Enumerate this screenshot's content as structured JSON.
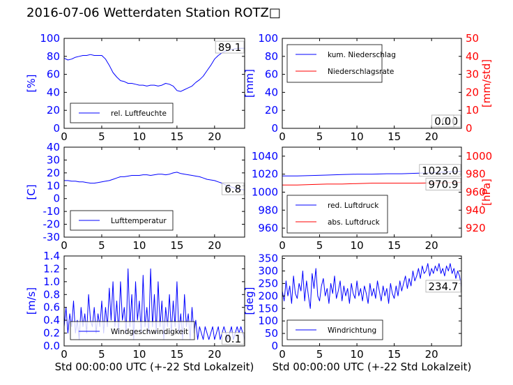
{
  "figure_title": "2016-07-06 Wetterdaten Station ROTZ□",
  "colors": {
    "primary": "#0000ff",
    "secondary": "#ff0000",
    "axis": "#000000"
  },
  "chart_data": [
    {
      "type": "line",
      "ylabel": "[%]",
      "xlim": [
        0,
        24
      ],
      "ylim": [
        0,
        100
      ],
      "xticks": [
        0,
        5,
        10,
        15,
        20
      ],
      "yticks": [
        0,
        20,
        40,
        60,
        80,
        100
      ],
      "xlabel": "",
      "grid": false,
      "legend_placement": "lower-center",
      "last_value_label": "89.1",
      "series": [
        {
          "name": "rel. Luftfeuchte",
          "color": "#0000ff",
          "x": [
            0,
            0.5,
            1,
            1.5,
            2,
            2.5,
            3,
            3.5,
            4,
            4.5,
            5,
            5.5,
            6,
            6.5,
            7,
            7.5,
            8,
            8.5,
            9,
            9.5,
            10,
            10.5,
            11,
            11.5,
            12,
            12.5,
            13,
            13.5,
            14,
            14.5,
            15,
            15.5,
            16,
            16.5,
            17,
            17.5,
            18,
            18.5,
            19,
            19.5,
            20,
            20.5,
            21,
            21.5,
            22,
            22.5,
            23,
            23.5,
            24
          ],
          "y": [
            78,
            76,
            77,
            79,
            80,
            81,
            81,
            82,
            81,
            81,
            81,
            77,
            70,
            62,
            57,
            53,
            52,
            50,
            50,
            49,
            48,
            48,
            47,
            48,
            48,
            47,
            48,
            50,
            49,
            47,
            42,
            41,
            43,
            45,
            47,
            51,
            54,
            58,
            64,
            70,
            77,
            81,
            84,
            86,
            87,
            88,
            89,
            89,
            89.1
          ]
        }
      ]
    },
    {
      "type": "line",
      "ylabel": "[mm]",
      "ylabel_right": "[mm/std]",
      "xlim": [
        0,
        24
      ],
      "ylim": [
        0,
        100
      ],
      "ylim_right": [
        0,
        50
      ],
      "xticks": [
        0,
        5,
        10,
        15,
        20
      ],
      "yticks": [
        0,
        20,
        40,
        60,
        80,
        100
      ],
      "yticks_right": [
        0,
        10,
        20,
        30,
        40,
        50
      ],
      "grid": false,
      "legend_placement": "upper-left",
      "last_value_labels": [
        "0.0",
        "0.0"
      ],
      "series": [
        {
          "name": "kum. Niederschlag",
          "color": "#0000ff",
          "x": [
            0,
            24
          ],
          "y": [
            0,
            0
          ]
        },
        {
          "name": "Niederschlagsrate",
          "color": "#ff0000",
          "axis": "right",
          "x": [
            0,
            24
          ],
          "y": [
            0,
            0
          ]
        }
      ]
    },
    {
      "type": "line",
      "ylabel": "[C]",
      "xlim": [
        0,
        24
      ],
      "ylim": [
        -30,
        40
      ],
      "xticks": [
        0,
        5,
        10,
        15,
        20
      ],
      "yticks": [
        -30,
        -20,
        -10,
        0,
        10,
        20,
        30,
        40
      ],
      "grid": false,
      "legend_placement": "lower-center",
      "last_value_label": "6.8",
      "series": [
        {
          "name": "Lufttemperatur",
          "color": "#0000ff",
          "x": [
            0,
            0.5,
            1,
            1.5,
            2,
            2.5,
            3,
            3.5,
            4,
            4.5,
            5,
            5.5,
            6,
            6.5,
            7,
            7.5,
            8,
            8.5,
            9,
            9.5,
            10,
            10.5,
            11,
            11.5,
            12,
            12.5,
            13,
            13.5,
            14,
            14.5,
            15,
            15.5,
            16,
            16.5,
            17,
            17.5,
            18,
            18.5,
            19,
            19.5,
            20,
            20.5,
            21,
            21.5,
            22,
            22.5,
            23,
            23.5,
            24
          ],
          "y": [
            14,
            14,
            13.5,
            13.5,
            13,
            13,
            12.5,
            12,
            12,
            12.5,
            13,
            13.5,
            14,
            15,
            16,
            17,
            17,
            17.5,
            18,
            18,
            18,
            18.5,
            18.5,
            18,
            18.5,
            19,
            19,
            18.5,
            19,
            20,
            20.5,
            19.5,
            19,
            18.5,
            18,
            17.5,
            17,
            16,
            15,
            14.5,
            14,
            13,
            12,
            10.5,
            9.5,
            8.5,
            7.5,
            7,
            6.8
          ]
        }
      ]
    },
    {
      "type": "line",
      "ylabel": "",
      "ylabel_right": "[hPa]",
      "xlim": [
        0,
        24
      ],
      "ylim": [
        950,
        1050
      ],
      "ylim_right": [
        910,
        1010
      ],
      "xticks": [
        0,
        5,
        10,
        15,
        20
      ],
      "yticks": [
        960,
        980,
        1000,
        1020,
        1040
      ],
      "yticks_right": [
        920,
        940,
        960,
        980,
        1000
      ],
      "grid": false,
      "legend_placement": "lower-center",
      "last_value_labels": [
        "1023.0",
        "970.9"
      ],
      "series": [
        {
          "name": "red. Luftdruck",
          "color": "#0000ff",
          "x": [
            0,
            2,
            4,
            6,
            8,
            10,
            12,
            14,
            16,
            18,
            20,
            22,
            24
          ],
          "y": [
            1018,
            1018,
            1018.5,
            1019,
            1019.5,
            1020,
            1020,
            1020.5,
            1020.5,
            1021,
            1021.5,
            1022.5,
            1023
          ]
        },
        {
          "name": "abs. Luftdruck",
          "color": "#ff0000",
          "axis": "right",
          "x": [
            0,
            2,
            4,
            6,
            8,
            10,
            12,
            14,
            16,
            18,
            20,
            22,
            24
          ],
          "y": [
            968,
            968,
            968.5,
            969,
            969,
            969.5,
            970,
            970,
            970,
            970,
            970.2,
            970.5,
            970.9
          ]
        }
      ]
    },
    {
      "type": "line",
      "ylabel": "[m/s]",
      "xlabel": "Std 00:00:00 UTC (+-22 Std Lokalzeit)",
      "xlim": [
        0,
        24
      ],
      "ylim": [
        0,
        1.4
      ],
      "xticks": [
        0,
        5,
        10,
        15,
        20
      ],
      "yticks": [
        0.0,
        0.2,
        0.4,
        0.6,
        0.8,
        1.0,
        1.2,
        1.4
      ],
      "grid": false,
      "legend_placement": "lower-center",
      "last_value_label": "0.1",
      "series": [
        {
          "name": "Windgeschwindigkeit",
          "color": "#0000ff",
          "x": [
            0,
            0.25,
            0.5,
            0.75,
            1,
            1.25,
            1.5,
            1.75,
            2,
            2.25,
            2.5,
            2.75,
            3,
            3.25,
            3.5,
            3.75,
            4,
            4.25,
            4.5,
            4.75,
            5,
            5.25,
            5.5,
            5.75,
            6,
            6.25,
            6.5,
            6.75,
            7,
            7.25,
            7.5,
            7.75,
            8,
            8.25,
            8.5,
            8.75,
            9,
            9.25,
            9.5,
            9.75,
            10,
            10.25,
            10.5,
            10.75,
            11,
            11.25,
            11.5,
            11.75,
            12,
            12.25,
            12.5,
            12.75,
            13,
            13.25,
            13.5,
            13.75,
            14,
            14.25,
            14.5,
            14.75,
            15,
            15.25,
            15.5,
            15.75,
            16,
            16.25,
            16.5,
            16.75,
            17,
            17.25,
            17.5,
            17.75,
            18,
            18.25,
            18.5,
            18.75,
            19,
            19.25,
            19.5,
            19.75,
            20,
            20.25,
            20.5,
            20.75,
            21,
            21.25,
            21.5,
            21.75,
            22,
            22.25,
            22.5,
            22.75,
            23,
            23.25,
            23.5,
            23.75,
            24
          ],
          "y": [
            0.3,
            0.6,
            0.2,
            0.5,
            0.3,
            0.7,
            0.2,
            0.4,
            0.1,
            0.6,
            0.3,
            0.5,
            0.2,
            0.8,
            0.4,
            0.3,
            0.6,
            0.2,
            0.5,
            0.3,
            0.7,
            0.2,
            0.6,
            0.3,
            0.9,
            0.4,
            1.0,
            0.3,
            0.7,
            0.2,
            1.0,
            0.4,
            0.6,
            0.2,
            1.2,
            0.3,
            0.8,
            0.1,
            1.0,
            0.4,
            0.7,
            0.2,
            1.1,
            0.3,
            0.6,
            0.2,
            1.2,
            0.3,
            0.8,
            0.2,
            1.0,
            0.3,
            0.7,
            0.1,
            0.6,
            0.3,
            0.8,
            0.2,
            0.7,
            0.3,
            1.0,
            0.2,
            0.5,
            0.1,
            0.8,
            0.3,
            0.5,
            0.1,
            0.6,
            0.2,
            0.4,
            0.1,
            0.3,
            0.2,
            0.1,
            0.3,
            0.2,
            0.1,
            0.2,
            0.3,
            0.1,
            0.2,
            0.3,
            0.1,
            0.2,
            0.3,
            0.2,
            0.1,
            0.2,
            0.3,
            0.1,
            0.2,
            0.3,
            0.2,
            0.3,
            0.2,
            0.1
          ]
        }
      ]
    },
    {
      "type": "line",
      "ylabel": "[deg]",
      "xlabel": "Std 00:00:00 UTC (+-22 Std Lokalzeit)",
      "xlim": [
        0,
        24
      ],
      "ylim": [
        0,
        360
      ],
      "xticks": [
        0,
        5,
        10,
        15,
        20
      ],
      "yticks": [
        0,
        50,
        100,
        150,
        200,
        250,
        300,
        350
      ],
      "grid": false,
      "legend_placement": "lower-left",
      "last_value_label": "234.7",
      "series": [
        {
          "name": "Windrichtung",
          "color": "#0000ff",
          "x": [
            0,
            0.25,
            0.5,
            0.75,
            1,
            1.25,
            1.5,
            1.75,
            2,
            2.25,
            2.5,
            2.75,
            3,
            3.25,
            3.5,
            3.75,
            4,
            4.25,
            4.5,
            4.75,
            5,
            5.25,
            5.5,
            5.75,
            6,
            6.25,
            6.5,
            6.75,
            7,
            7.25,
            7.5,
            7.75,
            8,
            8.25,
            8.5,
            8.75,
            9,
            9.25,
            9.5,
            9.75,
            10,
            10.25,
            10.5,
            10.75,
            11,
            11.25,
            11.5,
            11.75,
            12,
            12.25,
            12.5,
            12.75,
            13,
            13.25,
            13.5,
            13.75,
            14,
            14.25,
            14.5,
            14.75,
            15,
            15.25,
            15.5,
            15.75,
            16,
            16.25,
            16.5,
            16.75,
            17,
            17.25,
            17.5,
            17.75,
            18,
            18.25,
            18.5,
            18.75,
            19,
            19.25,
            19.5,
            19.75,
            20,
            20.25,
            20.5,
            20.75,
            21,
            21.25,
            21.5,
            21.75,
            22,
            22.25,
            22.5,
            22.75,
            23,
            23.25,
            23.5,
            23.75,
            24
          ],
          "y": [
            220,
            180,
            260,
            200,
            240,
            170,
            280,
            210,
            190,
            250,
            220,
            300,
            180,
            260,
            200,
            150,
            290,
            230,
            310,
            200,
            180,
            240,
            270,
            200,
            230,
            170,
            250,
            210,
            280,
            190,
            220,
            260,
            180,
            240,
            200,
            230,
            170,
            250,
            210,
            190,
            260,
            200,
            230,
            180,
            240,
            210,
            170,
            250,
            200,
            230,
            190,
            260,
            220,
            180,
            240,
            200,
            230,
            170,
            250,
            210,
            190,
            240,
            200,
            260,
            220,
            250,
            280,
            230,
            270,
            240,
            300,
            260,
            280,
            310,
            270,
            320,
            290,
            300,
            330,
            280,
            310,
            290,
            320,
            300,
            330,
            290,
            310,
            280,
            320,
            300,
            330,
            290,
            310,
            270,
            300,
            280,
            234.7
          ]
        }
      ]
    }
  ]
}
